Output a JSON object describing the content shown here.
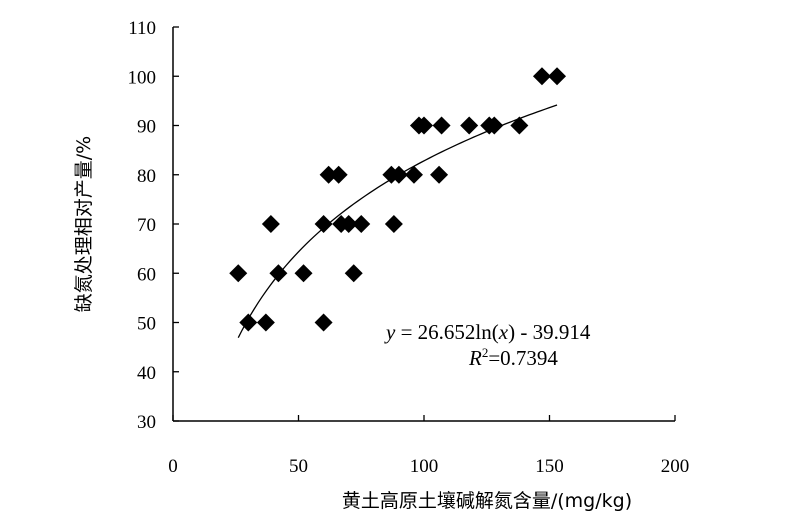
{
  "chart_data": {
    "type": "scatter",
    "xlabel": "黄土高原土壤碱解氮含量/(mg/kg)",
    "ylabel": "缺氮处理相对产量/%",
    "xlim": [
      0,
      200
    ],
    "ylim": [
      30,
      110
    ],
    "xticks": [
      "0",
      "50",
      "100",
      "150",
      "200"
    ],
    "yticks": [
      "30",
      "40",
      "50",
      "60",
      "70",
      "80",
      "90",
      "100",
      "110"
    ],
    "grid": false,
    "marker": "diamond",
    "points": [
      {
        "x": 26,
        "y": 60
      },
      {
        "x": 30,
        "y": 50
      },
      {
        "x": 37,
        "y": 50
      },
      {
        "x": 39,
        "y": 70
      },
      {
        "x": 42,
        "y": 60
      },
      {
        "x": 52,
        "y": 60
      },
      {
        "x": 60,
        "y": 50
      },
      {
        "x": 60,
        "y": 70
      },
      {
        "x": 62,
        "y": 80
      },
      {
        "x": 66,
        "y": 80
      },
      {
        "x": 67,
        "y": 70
      },
      {
        "x": 70,
        "y": 70
      },
      {
        "x": 72,
        "y": 60
      },
      {
        "x": 75,
        "y": 70
      },
      {
        "x": 87,
        "y": 80
      },
      {
        "x": 88,
        "y": 70
      },
      {
        "x": 90,
        "y": 80
      },
      {
        "x": 96,
        "y": 80
      },
      {
        "x": 98,
        "y": 90
      },
      {
        "x": 100,
        "y": 90
      },
      {
        "x": 106,
        "y": 80
      },
      {
        "x": 107,
        "y": 90
      },
      {
        "x": 118,
        "y": 90
      },
      {
        "x": 126,
        "y": 90
      },
      {
        "x": 128,
        "y": 90
      },
      {
        "x": 138,
        "y": 90
      },
      {
        "x": 147,
        "y": 100
      },
      {
        "x": 153,
        "y": 100
      }
    ],
    "trendline": {
      "type": "log",
      "a": 26.652,
      "b": -39.914,
      "x_range": [
        26,
        153
      ]
    },
    "equation": {
      "y_var": "y",
      "eq_middle": " = 26.652ln(",
      "x_var": "x",
      "eq_end": ") - 39.914",
      "r_var": "R",
      "r_sup": "2",
      "r_value": "=0.7394"
    }
  }
}
